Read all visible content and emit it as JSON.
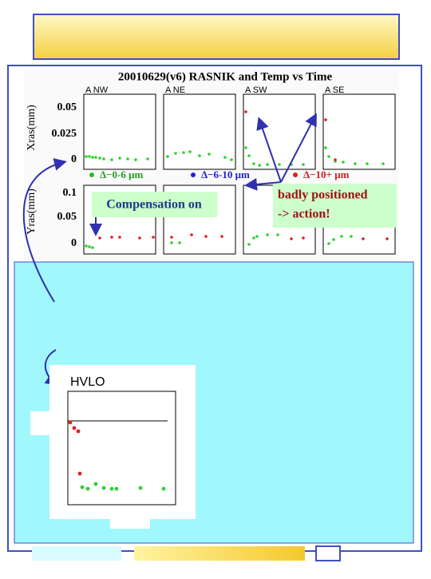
{
  "slide": {
    "plot_title": "20010629(v6) RASNIK and Temp vs Time",
    "axis_labels": [
      "Xras(mm)",
      "Yras(mm)"
    ],
    "panels": [
      "A  NW",
      "A  NE",
      "A  SW",
      "A  SE"
    ],
    "x_ticks": [
      "0.05",
      "0.025",
      "0"
    ],
    "y_ticks": [
      "0.1",
      "0.05",
      "0"
    ],
    "legend": [
      "Δ−0-6 μm",
      "Δ−6-10 μm",
      "Δ−10+ μm"
    ],
    "callouts": {
      "compensation": "Compensation on",
      "badly": [
        "badly positioned",
        " -> action!"
      ]
    },
    "hvlo_label": "HVLO"
  }
}
